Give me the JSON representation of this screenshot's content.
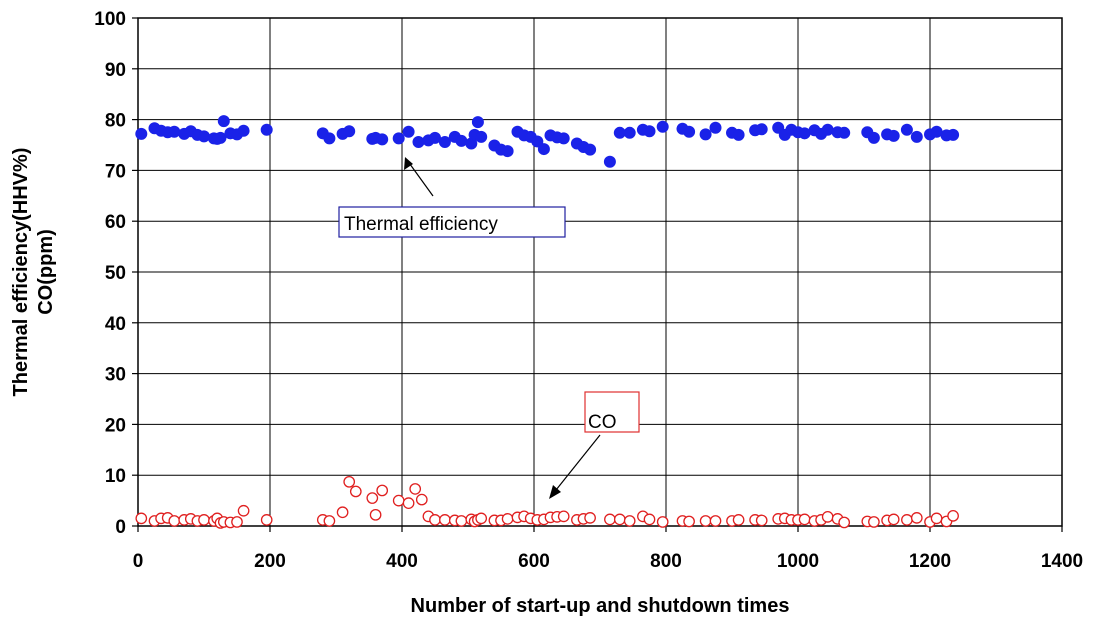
{
  "chart_data": {
    "type": "scatter",
    "xlabel": "Number of start-up and shutdown times",
    "ylabel_lines": [
      "Thermal efficiency(HHV%)",
      "CO(ppm)"
    ],
    "xlim": [
      0,
      1400
    ],
    "ylim": [
      0,
      100
    ],
    "x_ticks": [
      "0",
      "200",
      "400",
      "600",
      "800",
      "1000",
      "1200",
      "1400"
    ],
    "y_ticks": [
      "0",
      "10",
      "20",
      "30",
      "40",
      "50",
      "60",
      "70",
      "80",
      "90",
      "100"
    ],
    "grid": true,
    "annotations": [
      {
        "text": "Thermal efficiency",
        "series": "Thermal efficiency",
        "box_color": "#1f1fa0"
      },
      {
        "text": "CO",
        "series": "CO",
        "box_color": "#e03030"
      }
    ],
    "series": [
      {
        "name": "Thermal efficiency",
        "marker": "filled-circle",
        "color": "#1a22e8",
        "x": [
          5,
          25,
          35,
          45,
          55,
          70,
          80,
          90,
          100,
          115,
          120,
          125,
          130,
          140,
          150,
          160,
          195,
          280,
          290,
          310,
          320,
          355,
          360,
          370,
          395,
          410,
          425,
          440,
          450,
          465,
          480,
          490,
          505,
          510,
          515,
          520,
          540,
          550,
          560,
          575,
          585,
          595,
          605,
          615,
          625,
          635,
          645,
          665,
          675,
          685,
          715,
          730,
          745,
          765,
          775,
          795,
          825,
          835,
          860,
          875,
          900,
          910,
          935,
          945,
          970,
          980,
          990,
          1000,
          1010,
          1025,
          1035,
          1045,
          1060,
          1070,
          1105,
          1115,
          1135,
          1145,
          1165,
          1180,
          1200,
          1210,
          1225,
          1235
        ],
        "y": [
          77.2,
          78.3,
          77.8,
          77.5,
          77.6,
          77.2,
          77.7,
          77.0,
          76.7,
          76.3,
          76.2,
          76.4,
          79.7,
          77.3,
          77.1,
          77.8,
          78.0,
          77.3,
          76.3,
          77.2,
          77.7,
          76.2,
          76.4,
          76.1,
          76.3,
          77.6,
          75.6,
          75.9,
          76.4,
          75.6,
          76.6,
          75.8,
          75.3,
          77.0,
          79.5,
          76.6,
          74.9,
          74.1,
          73.8,
          77.6,
          76.9,
          76.6,
          75.7,
          74.2,
          76.9,
          76.5,
          76.3,
          75.3,
          74.6,
          74.1,
          71.7,
          77.4,
          77.4,
          78.0,
          77.7,
          78.6,
          78.2,
          77.6,
          77.1,
          78.4,
          77.4,
          77.0,
          77.9,
          78.1,
          78.4,
          77.0,
          78.0,
          77.5,
          77.3,
          77.9,
          77.2,
          78.0,
          77.5,
          77.4,
          77.5,
          76.4,
          77.1,
          76.8,
          78.0,
          76.6,
          77.1,
          77.6,
          76.9,
          77.0
        ]
      },
      {
        "name": "CO",
        "marker": "open-circle",
        "color": "#e02020",
        "x": [
          5,
          25,
          35,
          45,
          55,
          70,
          80,
          90,
          100,
          115,
          120,
          125,
          130,
          140,
          150,
          160,
          195,
          280,
          290,
          310,
          320,
          330,
          355,
          360,
          370,
          395,
          410,
          420,
          430,
          440,
          450,
          465,
          480,
          490,
          505,
          510,
          515,
          520,
          540,
          550,
          560,
          575,
          585,
          595,
          605,
          615,
          625,
          635,
          645,
          665,
          675,
          685,
          715,
          730,
          745,
          765,
          775,
          795,
          825,
          835,
          860,
          875,
          900,
          910,
          935,
          945,
          970,
          980,
          990,
          1000,
          1010,
          1025,
          1035,
          1045,
          1060,
          1070,
          1105,
          1115,
          1135,
          1145,
          1165,
          1180,
          1200,
          1210,
          1225,
          1235
        ],
        "y": [
          1.5,
          1.0,
          1.5,
          1.6,
          1.0,
          1.2,
          1.4,
          1.0,
          1.2,
          1.0,
          1.5,
          0.6,
          0.8,
          0.7,
          0.8,
          3.0,
          1.2,
          1.2,
          1.0,
          2.7,
          8.7,
          6.8,
          5.5,
          2.2,
          7.0,
          5.0,
          4.5,
          7.3,
          5.2,
          1.9,
          1.2,
          1.2,
          1.1,
          1.0,
          1.3,
          0.9,
          1.2,
          1.5,
          1.1,
          1.1,
          1.4,
          1.7,
          1.9,
          1.5,
          1.2,
          1.3,
          1.7,
          1.8,
          1.9,
          1.2,
          1.4,
          1.6,
          1.3,
          1.3,
          1.0,
          1.9,
          1.3,
          0.8,
          1.0,
          0.9,
          1.0,
          1.0,
          1.0,
          1.2,
          1.2,
          1.1,
          1.4,
          1.5,
          1.2,
          1.2,
          1.3,
          1.0,
          1.2,
          1.8,
          1.4,
          0.7,
          0.9,
          0.8,
          1.1,
          1.3,
          1.2,
          1.6,
          0.8,
          1.5,
          0.9,
          2.0
        ]
      }
    ]
  }
}
